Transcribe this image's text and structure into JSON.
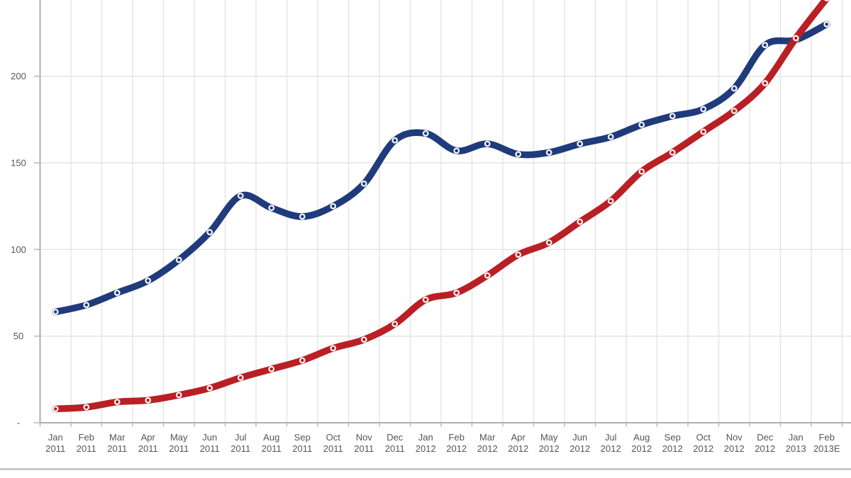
{
  "chart_data": {
    "type": "line",
    "categories": [
      "Jan 2011",
      "Feb 2011",
      "Mar 2011",
      "Apr 2011",
      "May 2011",
      "Jun 2011",
      "Jul 2011",
      "Aug 2011",
      "Sep 2011",
      "Oct 2011",
      "Nov 2011",
      "Dec 2011",
      "Jan 2012",
      "Feb 2012",
      "Mar 2012",
      "Apr 2012",
      "May 2012",
      "Jun 2012",
      "Jul 2012",
      "Aug 2012",
      "Sep 2012",
      "Oct 2012",
      "Nov 2012",
      "Dec 2012",
      "Jan 2013",
      "Feb 2013E"
    ],
    "series": [
      {
        "name": "blue",
        "color": "#1f3b7c",
        "values": [
          64,
          68,
          75,
          82,
          94,
          110,
          131,
          124,
          119,
          125,
          138,
          163,
          167,
          157,
          161,
          155,
          156,
          161,
          165,
          172,
          177,
          181,
          193,
          218,
          221,
          230
        ]
      },
      {
        "name": "red",
        "color": "#b91f24",
        "values": [
          8,
          9,
          12,
          13,
          16,
          20,
          26,
          31,
          36,
          43,
          48,
          57,
          71,
          75,
          85,
          97,
          104,
          116,
          128,
          145,
          156,
          168,
          180,
          196,
          222,
          245
        ]
      }
    ],
    "yticks": [
      {
        "label": "200",
        "value": 200
      },
      {
        "label": "150",
        "value": 150
      },
      {
        "label": "100",
        "value": 100
      },
      {
        "label": "50",
        "value": 50
      },
      {
        "label": "-",
        "value": 0
      }
    ],
    "ylim": [
      0,
      245
    ],
    "grid": true,
    "legend": "none",
    "xlabel": "",
    "ylabel": ""
  },
  "colors": {
    "grid": "#e3e3e3",
    "axis": "#aeaeae",
    "tick": "#b9b9b9",
    "label": "#54565a",
    "marker_ring": "#ffffff",
    "divider": "#c9cacb",
    "background": "#ffffff"
  }
}
